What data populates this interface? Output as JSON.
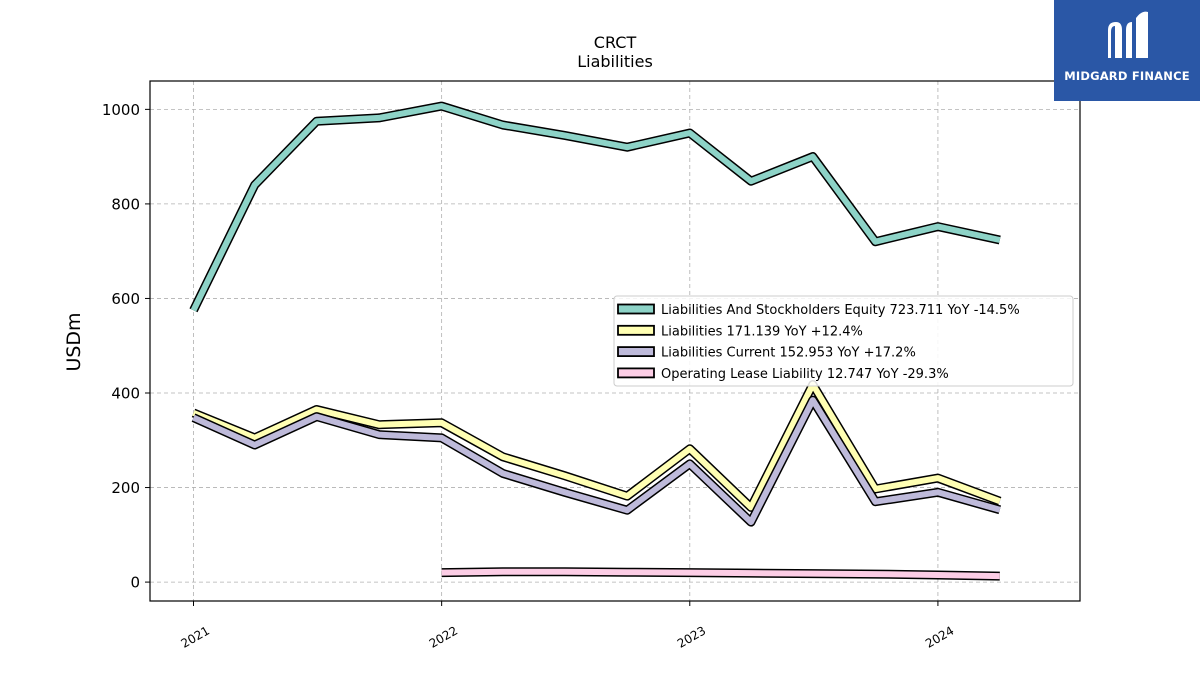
{
  "chart_data": {
    "type": "line",
    "title": "CRCT",
    "subtitle": "Liabilities",
    "ylabel": "USDm",
    "xlabel": "",
    "ylim": [
      -40,
      1060
    ],
    "xlim": [
      "2020-10-29",
      "2024-07-28"
    ],
    "yticks": [
      0,
      200,
      400,
      600,
      800,
      1000
    ],
    "xticks": [
      {
        "date": "2021-01-01",
        "label": "2021"
      },
      {
        "date": "2022-01-01",
        "label": "2022"
      },
      {
        "date": "2023-01-01",
        "label": "2023"
      },
      {
        "date": "2024-01-01",
        "label": "2024"
      }
    ],
    "grid": true,
    "legend_position": "center-right",
    "series": [
      {
        "name": "Liabilities And Stockholders Equity",
        "legend_label": "Liabilities And Stockholders Equity  723.711 YoY -14.5%",
        "color": "#8dd3c7",
        "points": [
          [
            "2021-01-01",
            575
          ],
          [
            "2021-04-01",
            840
          ],
          [
            "2021-07-01",
            975
          ],
          [
            "2021-10-01",
            982
          ],
          [
            "2022-01-01",
            1007
          ],
          [
            "2022-04-01",
            967
          ],
          [
            "2022-07-01",
            945
          ],
          [
            "2022-10-01",
            920
          ],
          [
            "2023-01-01",
            950
          ],
          [
            "2023-04-01",
            848
          ],
          [
            "2023-07-01",
            900
          ],
          [
            "2023-10-01",
            720
          ],
          [
            "2024-01-01",
            752
          ],
          [
            "2024-04-01",
            723.711
          ]
        ]
      },
      {
        "name": "Liabilities",
        "legend_label": "Liabilities  171.139 YoY +12.4%",
        "color": "#ffffb3",
        "points": [
          [
            "2021-01-01",
            358
          ],
          [
            "2021-04-01",
            305
          ],
          [
            "2021-07-01",
            365
          ],
          [
            "2021-10-01",
            333
          ],
          [
            "2022-01-01",
            337
          ],
          [
            "2022-04-01",
            265
          ],
          [
            "2022-07-01",
            225
          ],
          [
            "2022-10-01",
            182
          ],
          [
            "2023-01-01",
            282
          ],
          [
            "2023-04-01",
            158
          ],
          [
            "2023-07-01",
            418
          ],
          [
            "2023-10-01",
            197
          ],
          [
            "2024-01-01",
            220
          ],
          [
            "2024-04-01",
            171.139
          ]
        ]
      },
      {
        "name": "Liabilities Current",
        "legend_label": "Liabilities Current  152.953 YoY +17.2%",
        "color": "#bebada",
        "points": [
          [
            "2021-01-01",
            348
          ],
          [
            "2021-04-01",
            290
          ],
          [
            "2021-07-01",
            350
          ],
          [
            "2021-10-01",
            312
          ],
          [
            "2022-01-01",
            305
          ],
          [
            "2022-04-01",
            230
          ],
          [
            "2022-07-01",
            190
          ],
          [
            "2022-10-01",
            152
          ],
          [
            "2023-01-01",
            250
          ],
          [
            "2023-04-01",
            127
          ],
          [
            "2023-07-01",
            385
          ],
          [
            "2023-10-01",
            170
          ],
          [
            "2024-01-01",
            190
          ],
          [
            "2024-04-01",
            152.953
          ]
        ]
      },
      {
        "name": "Operating Lease Liability",
        "legend_label": "Operating Lease Liability  12.747 YoY -29.3%",
        "color": "#fccde5",
        "points": [
          [
            "2022-01-01",
            20
          ],
          [
            "2022-04-01",
            22
          ],
          [
            "2022-07-01",
            22
          ],
          [
            "2022-10-01",
            21
          ],
          [
            "2023-01-01",
            20
          ],
          [
            "2023-04-01",
            19
          ],
          [
            "2023-07-01",
            18
          ],
          [
            "2023-10-01",
            17
          ],
          [
            "2024-01-01",
            15
          ],
          [
            "2024-04-01",
            12.747
          ]
        ]
      }
    ]
  },
  "brand": {
    "name": "MIDGARD FINANCE",
    "background": "#2a57a6",
    "foreground": "#ffffff"
  }
}
